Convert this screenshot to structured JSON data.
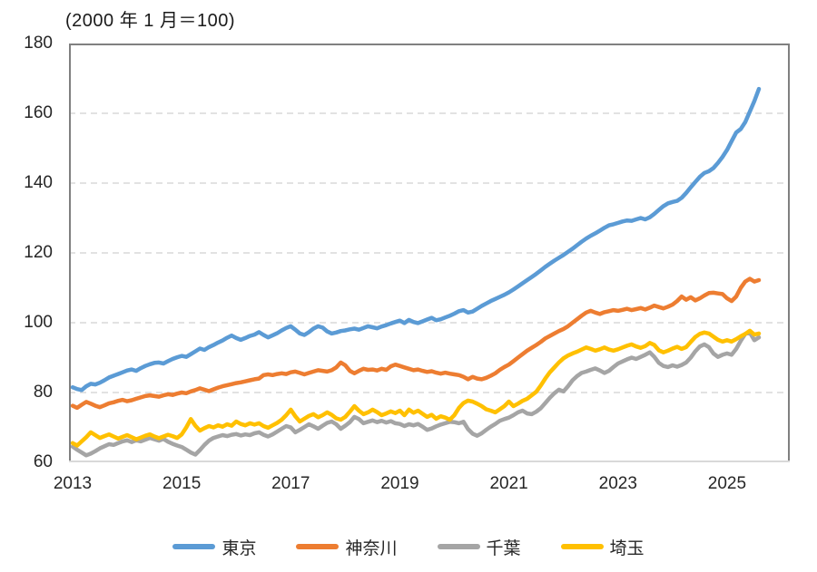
{
  "chart": {
    "title": "(2000 年 1 月＝100)",
    "colors": {
      "plot_border": "#808080",
      "bottom_axis": "#d9d9d9",
      "gridline": "#d9d9d9",
      "axis_text": "#262626"
    }
  },
  "chart_data": {
    "type": "line",
    "title": "(2000 年 1 月＝100)",
    "x_interval": "monthly",
    "x_start": "2013-01",
    "x_end": "2025-08",
    "x_axis_total_months": 156,
    "x_tick_labels": [
      "2013",
      "2015",
      "2017",
      "2019",
      "2021",
      "2023",
      "2025"
    ],
    "x_tick_month_index": [
      0,
      24,
      48,
      72,
      96,
      120,
      144
    ],
    "ylim": [
      60,
      180
    ],
    "y_ticks": [
      60,
      80,
      100,
      120,
      140,
      160,
      180
    ],
    "gridline_values": [
      80,
      100,
      120,
      140,
      160
    ],
    "grid": "dashed-horizontal",
    "legend_position": "bottom",
    "series": [
      {
        "name": "東京",
        "key": "tokyo",
        "color": "#5B9BD5",
        "values": [
          81.5,
          81.0,
          80.7,
          81.8,
          82.5,
          82.3,
          82.8,
          83.5,
          84.3,
          84.8,
          85.3,
          85.8,
          86.3,
          86.6,
          86.2,
          87.0,
          87.6,
          88.1,
          88.5,
          88.6,
          88.3,
          89.0,
          89.6,
          90.1,
          90.5,
          90.2,
          91.0,
          91.8,
          92.6,
          92.2,
          93.0,
          93.6,
          94.3,
          94.9,
          95.7,
          96.3,
          95.6,
          95.1,
          95.6,
          96.2,
          96.6,
          97.3,
          96.5,
          95.8,
          96.4,
          97.0,
          97.8,
          98.5,
          99.0,
          98.0,
          96.9,
          96.5,
          97.3,
          98.3,
          99.0,
          98.6,
          97.5,
          96.9,
          97.2,
          97.6,
          97.8,
          98.1,
          98.3,
          98.0,
          98.5,
          99.0,
          98.7,
          98.4,
          98.9,
          99.3,
          99.8,
          100.2,
          100.6,
          99.9,
          100.8,
          100.2,
          99.9,
          100.4,
          100.9,
          101.4,
          100.7,
          101.0,
          101.5,
          102.0,
          102.6,
          103.3,
          103.6,
          102.9,
          103.2,
          104.0,
          104.8,
          105.5,
          106.2,
          106.8,
          107.4,
          108.0,
          108.7,
          109.5,
          110.4,
          111.3,
          112.2,
          113.1,
          114.0,
          115.0,
          116.0,
          116.9,
          117.8,
          118.6,
          119.4,
          120.3,
          121.2,
          122.2,
          123.2,
          124.1,
          124.9,
          125.6,
          126.4,
          127.2,
          127.9,
          128.2,
          128.6,
          129.0,
          129.3,
          129.2,
          129.6,
          130.0,
          129.6,
          130.2,
          131.2,
          132.3,
          133.4,
          134.2,
          134.6,
          134.9,
          135.8,
          137.2,
          138.8,
          140.3,
          141.8,
          142.9,
          143.4,
          144.3,
          145.8,
          147.5,
          149.5,
          152.0,
          154.5,
          155.5,
          157.5,
          160.5,
          163.5,
          167.0
        ]
      },
      {
        "name": "神奈川",
        "key": "kanagawa",
        "color": "#ED7D31",
        "values": [
          76.2,
          75.6,
          76.5,
          77.3,
          76.8,
          76.2,
          75.8,
          76.3,
          76.9,
          77.2,
          77.6,
          77.9,
          77.5,
          77.8,
          78.2,
          78.6,
          79.0,
          79.2,
          79.0,
          78.8,
          79.2,
          79.5,
          79.3,
          79.7,
          80.0,
          79.8,
          80.3,
          80.7,
          81.2,
          80.8,
          80.4,
          80.9,
          81.4,
          81.8,
          82.1,
          82.4,
          82.7,
          82.9,
          83.2,
          83.5,
          83.8,
          84.0,
          85.0,
          85.2,
          85.0,
          85.3,
          85.5,
          85.3,
          85.8,
          86.0,
          85.6,
          85.2,
          85.6,
          86.0,
          86.4,
          86.2,
          86.0,
          86.4,
          87.2,
          88.6,
          87.8,
          86.2,
          85.5,
          86.2,
          86.8,
          86.5,
          86.6,
          86.3,
          86.8,
          86.5,
          87.5,
          88.0,
          87.6,
          87.2,
          86.8,
          86.4,
          86.6,
          86.2,
          85.9,
          86.1,
          85.7,
          85.4,
          85.7,
          85.4,
          85.2,
          85.0,
          84.5,
          83.8,
          84.5,
          84.0,
          83.8,
          84.2,
          84.8,
          85.5,
          86.5,
          87.3,
          88.0,
          89.0,
          90.0,
          91.0,
          92.0,
          92.8,
          93.6,
          94.5,
          95.5,
          96.2,
          96.9,
          97.6,
          98.2,
          99.0,
          100.0,
          101.0,
          102.0,
          102.9,
          103.4,
          102.9,
          102.5,
          103.0,
          103.3,
          103.6,
          103.4,
          103.7,
          104.0,
          103.6,
          103.9,
          104.2,
          103.8,
          104.3,
          104.9,
          104.5,
          104.1,
          104.6,
          105.2,
          106.2,
          107.5,
          106.6,
          107.3,
          106.4,
          107.0,
          107.8,
          108.5,
          108.6,
          108.4,
          108.2,
          107.0,
          106.2,
          107.5,
          110.0,
          111.8,
          112.6,
          111.8,
          112.2
        ]
      },
      {
        "name": "千葉",
        "key": "chiba",
        "color": "#A5A5A5",
        "values": [
          64.5,
          63.6,
          62.8,
          62.0,
          62.5,
          63.2,
          64.0,
          64.6,
          65.2,
          65.0,
          65.5,
          66.0,
          66.3,
          65.8,
          66.3,
          66.0,
          66.5,
          67.0,
          66.6,
          66.2,
          66.7,
          65.9,
          65.3,
          64.8,
          64.4,
          63.6,
          62.8,
          62.2,
          63.5,
          65.0,
          66.2,
          67.0,
          67.4,
          67.8,
          67.5,
          67.9,
          68.1,
          67.7,
          68.0,
          67.8,
          68.3,
          68.6,
          67.9,
          67.4,
          68.0,
          68.8,
          69.6,
          70.4,
          70.0,
          68.6,
          69.3,
          70.1,
          70.9,
          70.3,
          69.6,
          70.5,
          71.3,
          71.7,
          70.9,
          69.6,
          70.5,
          71.5,
          73.0,
          72.4,
          71.2,
          71.6,
          72.0,
          71.5,
          71.9,
          71.4,
          71.8,
          71.2,
          71.0,
          70.4,
          70.9,
          70.6,
          71.0,
          70.2,
          69.3,
          69.7,
          70.3,
          70.8,
          71.2,
          71.6,
          71.5,
          71.2,
          71.6,
          69.5,
          68.2,
          67.6,
          68.3,
          69.3,
          70.2,
          71.0,
          71.9,
          72.4,
          72.8,
          73.5,
          74.3,
          74.8,
          74.0,
          73.8,
          74.5,
          75.5,
          77.0,
          78.5,
          79.8,
          80.8,
          80.3,
          81.8,
          83.5,
          84.7,
          85.6,
          86.0,
          86.5,
          86.9,
          86.3,
          85.6,
          86.2,
          87.3,
          88.3,
          88.9,
          89.5,
          90.0,
          89.6,
          90.2,
          90.8,
          91.5,
          90.2,
          88.5,
          87.6,
          87.3,
          87.8,
          87.4,
          87.9,
          88.6,
          90.0,
          91.8,
          93.2,
          93.8,
          93.0,
          91.2,
          90.2,
          90.8,
          91.2,
          90.8,
          92.5,
          94.8,
          96.8,
          97.2,
          95.0,
          95.8
        ]
      },
      {
        "name": "埼玉",
        "key": "saitama",
        "color": "#FFC000",
        "values": [
          65.5,
          64.8,
          66.0,
          67.2,
          68.6,
          67.8,
          67.0,
          67.5,
          68.0,
          67.4,
          66.8,
          67.3,
          67.8,
          67.2,
          66.6,
          67.1,
          67.6,
          68.0,
          67.4,
          66.9,
          67.4,
          67.9,
          67.5,
          67.0,
          68.0,
          70.0,
          72.4,
          70.5,
          69.1,
          69.8,
          70.4,
          70.0,
          70.6,
          70.2,
          70.9,
          70.5,
          71.7,
          71.0,
          70.6,
          71.2,
          70.8,
          71.2,
          70.4,
          69.9,
          70.6,
          71.3,
          72.2,
          73.5,
          75.1,
          73.2,
          71.7,
          72.5,
          73.3,
          73.8,
          72.9,
          73.5,
          74.3,
          73.6,
          72.6,
          72.2,
          73.0,
          74.5,
          76.1,
          74.8,
          73.8,
          74.3,
          75.1,
          74.4,
          73.5,
          74.0,
          74.6,
          74.1,
          74.8,
          73.5,
          75.1,
          74.2,
          74.8,
          73.9,
          73.0,
          73.6,
          72.5,
          73.2,
          72.8,
          72.2,
          73.5,
          75.6,
          77.0,
          77.7,
          77.4,
          76.8,
          76.1,
          75.2,
          74.8,
          74.3,
          75.2,
          76.1,
          77.4,
          76.1,
          76.8,
          77.6,
          78.2,
          79.2,
          80.2,
          82.0,
          84.0,
          85.8,
          87.2,
          88.6,
          89.8,
          90.6,
          91.2,
          91.7,
          92.3,
          92.9,
          92.5,
          92.0,
          92.4,
          92.9,
          92.3,
          92.0,
          92.4,
          92.9,
          93.4,
          93.8,
          93.2,
          92.8,
          93.3,
          94.2,
          93.6,
          92.1,
          91.5,
          92.0,
          92.6,
          93.1,
          92.5,
          93.0,
          94.5,
          95.9,
          96.8,
          97.2,
          96.9,
          96.0,
          95.1,
          94.6,
          95.0,
          94.6,
          95.3,
          96.1,
          96.8,
          97.7,
          96.6,
          96.9
        ]
      }
    ]
  }
}
